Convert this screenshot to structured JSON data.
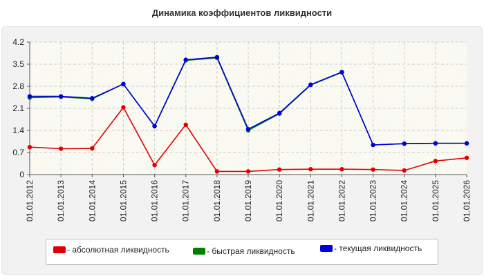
{
  "chart_data": {
    "type": "line",
    "title": "Динамика коэффициентов ликвидности",
    "xlabel": "",
    "ylabel": "",
    "ylim": [
      0,
      4.2
    ],
    "yticks": [
      "0",
      "0.7",
      "1.4",
      "2.1",
      "2.8",
      "3.5",
      "4.2"
    ],
    "categories": [
      "01.01.2012",
      "01.01.2013",
      "01.01.2014",
      "01.01.2015",
      "01.01.2016",
      "01.01.2017",
      "01.01.2018",
      "01.01.2019",
      "01.01.2020",
      "01.01.2021",
      "01.01.2022",
      "01.01.2023",
      "01.01.2024",
      "01.01.2025",
      "01.01.2026"
    ],
    "grid": true,
    "legend_position": "bottom",
    "series": [
      {
        "name": "- абсолютная ликвидность",
        "color": "#e00000",
        "values": [
          0.87,
          0.82,
          0.83,
          2.13,
          0.3,
          1.58,
          0.1,
          0.1,
          0.16,
          0.17,
          0.17,
          0.16,
          0.13,
          0.43,
          0.53
        ]
      },
      {
        "name": "- быстрая ликвидность",
        "color": "#008000",
        "values": [
          2.44,
          2.46,
          2.4,
          2.87,
          1.53,
          3.62,
          3.7,
          1.4,
          1.93,
          2.84,
          3.24,
          0.94,
          0.98,
          0.99,
          0.99
        ]
      },
      {
        "name": "- текущая ликвидность",
        "color": "#0000dd",
        "values": [
          2.48,
          2.48,
          2.42,
          2.87,
          1.54,
          3.64,
          3.72,
          1.44,
          1.95,
          2.85,
          3.25,
          0.94,
          0.98,
          0.99,
          0.99
        ]
      }
    ]
  }
}
